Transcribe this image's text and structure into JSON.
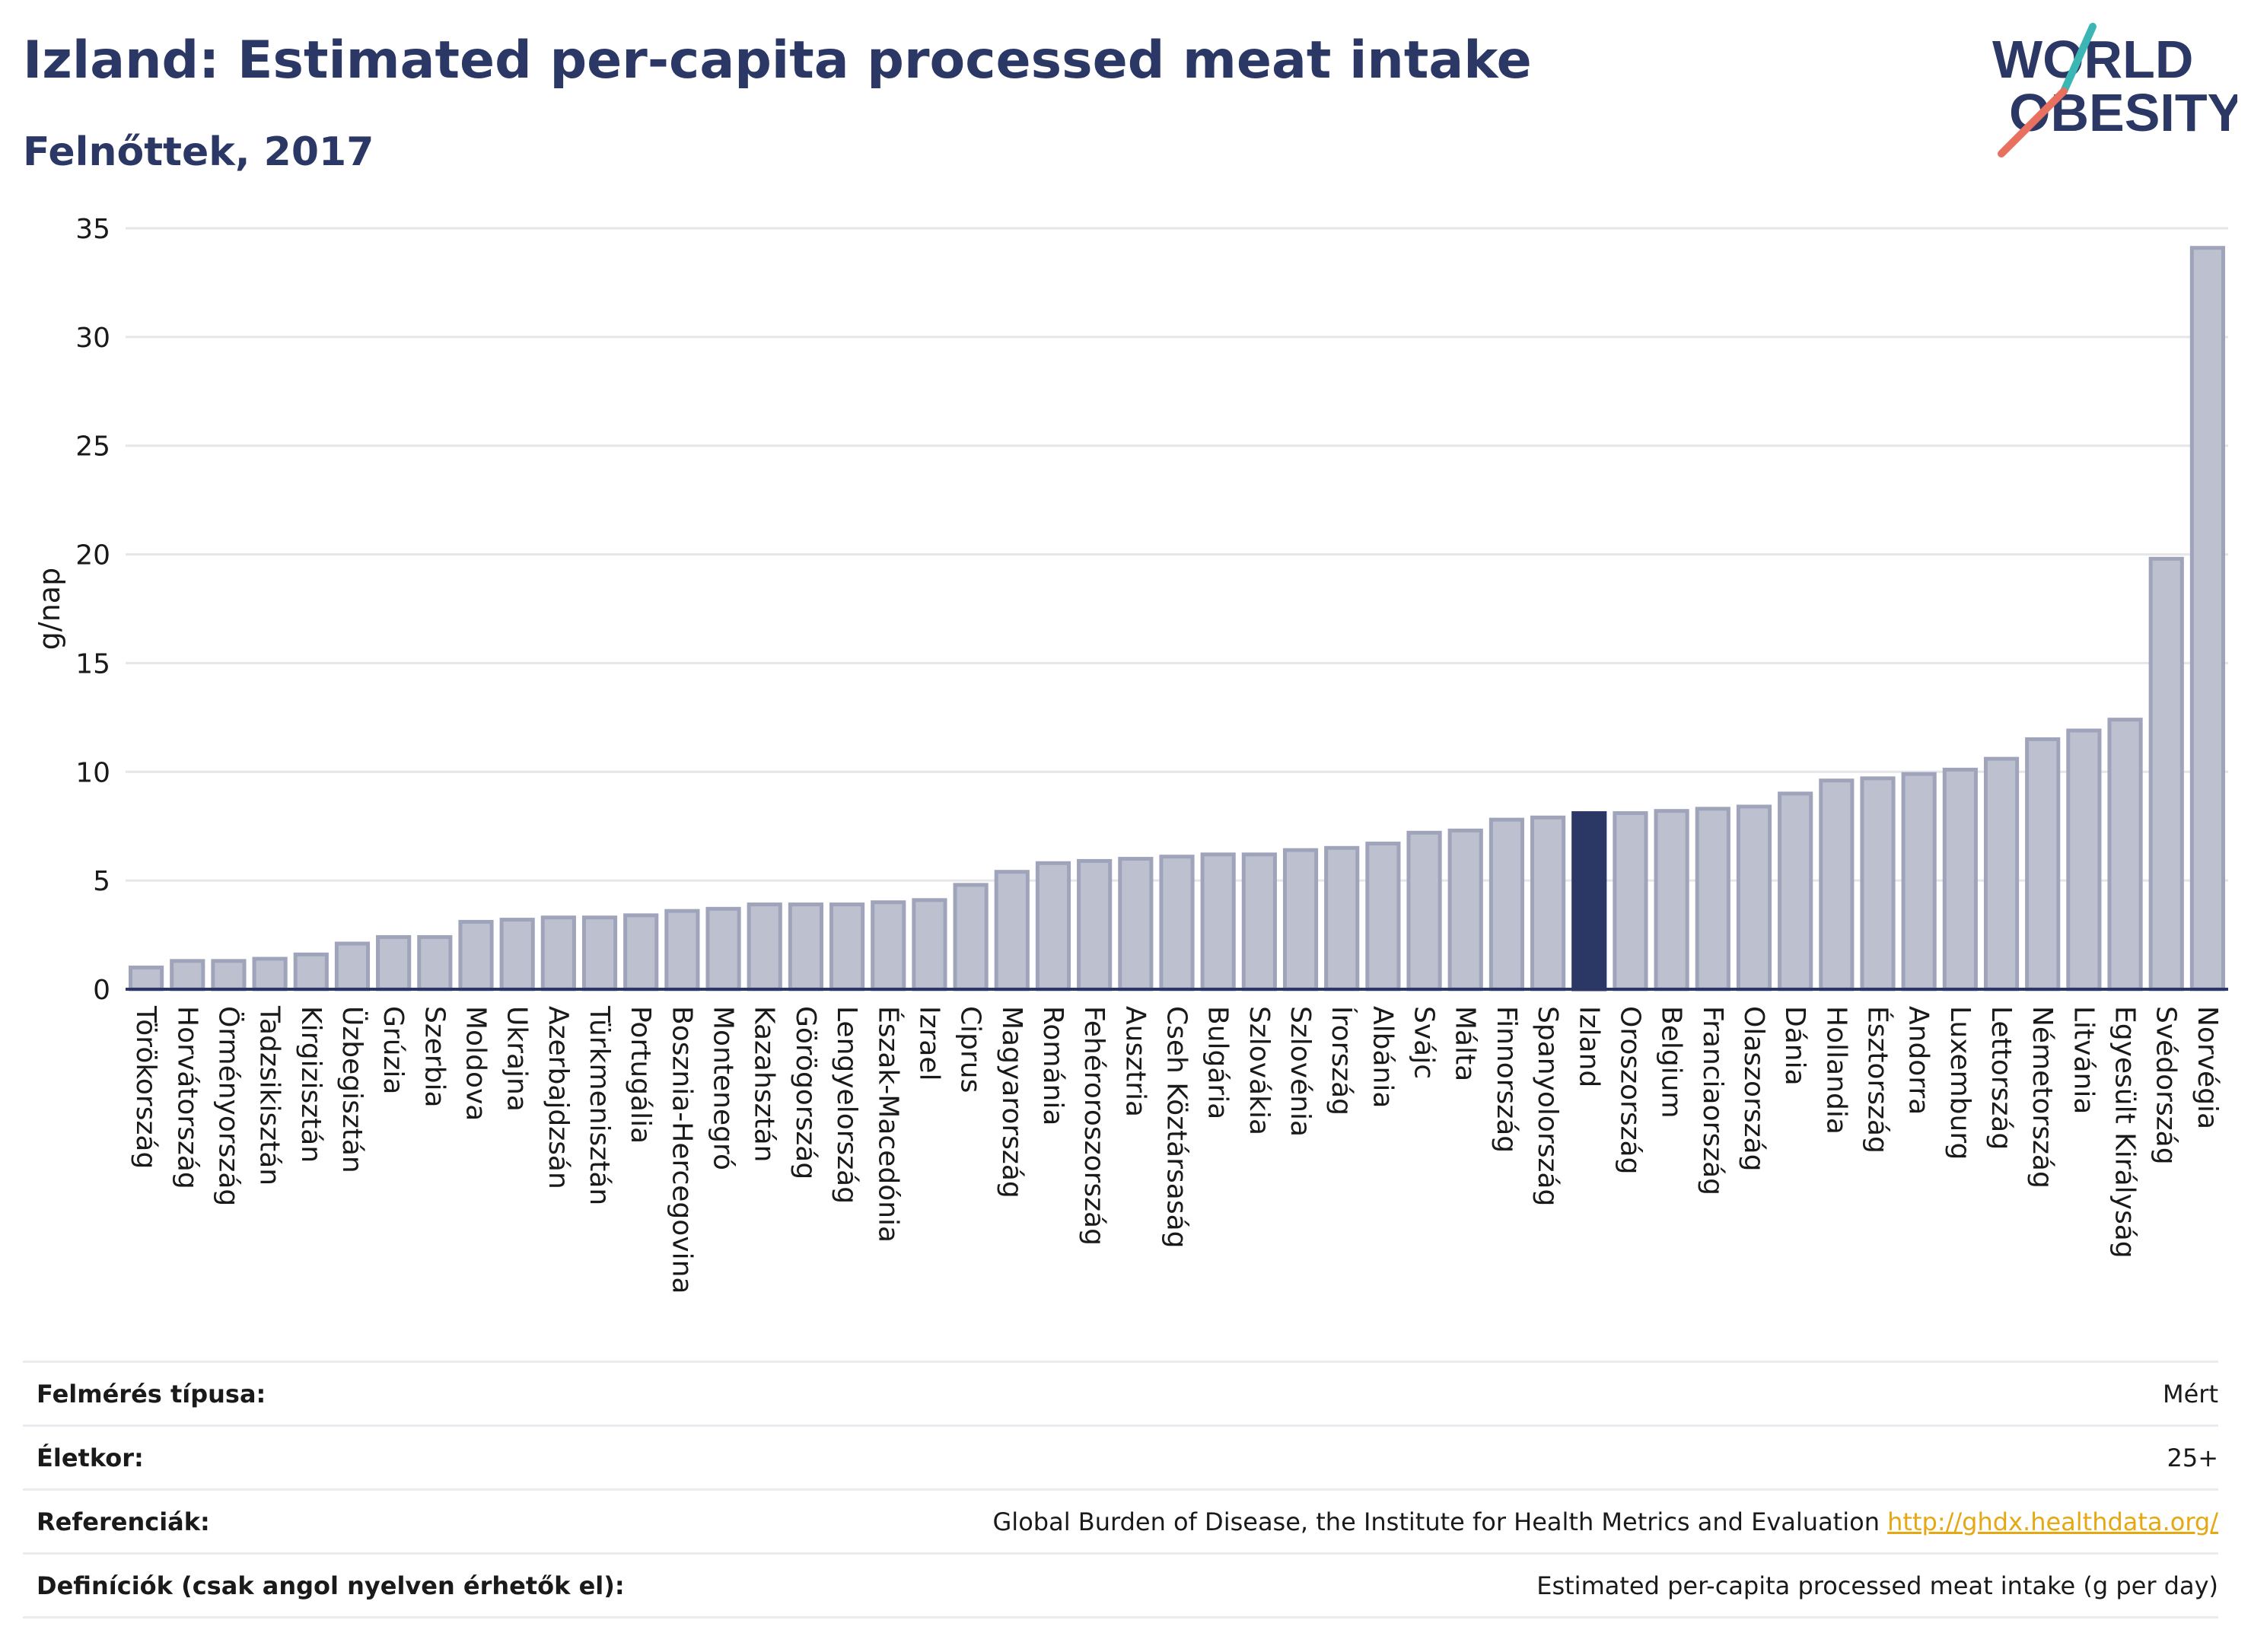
{
  "header": {
    "title": "Izland: Estimated per-capita processed meat intake",
    "subtitle": "Felnőttek, 2017"
  },
  "logo": {
    "line1": "WORLD",
    "line2": "OBESITY"
  },
  "colors": {
    "bar": "#bcc0cf",
    "bar_border": "#9fa4bb",
    "highlight": "#2b3765",
    "grid": "#e6e6ea",
    "axis": "#2b3765",
    "logo_text": "#2b3765",
    "logo_teal": "#3bb6b4",
    "logo_coral": "#e8705f",
    "link": "#e5a812"
  },
  "chart_data": {
    "type": "bar",
    "ylabel": "g/nap",
    "ylim": [
      0,
      35
    ],
    "yticks": [
      0,
      5,
      10,
      15,
      20,
      25,
      30,
      35
    ],
    "grid": true,
    "highlight": "Izland",
    "categories": [
      "Törökország",
      "Horvátország",
      "Örményország",
      "Tadzsikisztán",
      "Kirgizisztán",
      "Üzbegisztán",
      "Grúzia",
      "Szerbia",
      "Moldova",
      "Ukrajna",
      "Azerbajdzsán",
      "Türkmenisztán",
      "Portugália",
      "Bosznia-Hercegovina",
      "Montenegró",
      "Kazahsztán",
      "Görögország",
      "Lengyelország",
      "Észak-Macedónia",
      "Izrael",
      "Ciprus",
      "Magyarország",
      "Románia",
      "Fehéroroszország",
      "Ausztria",
      "Cseh Köztársaság",
      "Bulgária",
      "Szlovákia",
      "Szlovénia",
      "Írország",
      "Albánia",
      "Svájc",
      "Málta",
      "Finnország",
      "Spanyolország",
      "Izland",
      "Oroszország",
      "Belgium",
      "Franciaország",
      "Olaszország",
      "Dánia",
      "Hollandia",
      "Észtország",
      "Andorra",
      "Luxemburg",
      "Lettország",
      "Németország",
      "Litvánia",
      "Egyesült Királyság",
      "Svédország",
      "Norvégia"
    ],
    "values": [
      1.0,
      1.3,
      1.3,
      1.4,
      1.6,
      2.1,
      2.4,
      2.4,
      3.1,
      3.2,
      3.3,
      3.3,
      3.4,
      3.6,
      3.7,
      3.9,
      3.9,
      3.9,
      4.0,
      4.1,
      4.8,
      5.4,
      5.8,
      5.9,
      6.0,
      6.1,
      6.2,
      6.2,
      6.4,
      6.5,
      6.7,
      7.2,
      7.3,
      7.8,
      7.9,
      8.1,
      8.1,
      8.2,
      8.3,
      8.4,
      9.0,
      9.6,
      9.7,
      9.9,
      10.1,
      10.6,
      11.5,
      11.9,
      12.4,
      19.8,
      34.1
    ]
  },
  "meta": [
    {
      "key": "Felmérés típusa:",
      "value": "Mért"
    },
    {
      "key": "Életkor:",
      "value": "25+"
    },
    {
      "key": "Referenciák:",
      "value": "Global Burden of Disease, the Institute for Health Metrics and Evaluation",
      "link": "http://ghdx.healthdata.org/"
    },
    {
      "key": "Definíciók (csak angol nyelven érhetők el):",
      "value": "Estimated per-capita processed meat intake (g per day)"
    }
  ]
}
